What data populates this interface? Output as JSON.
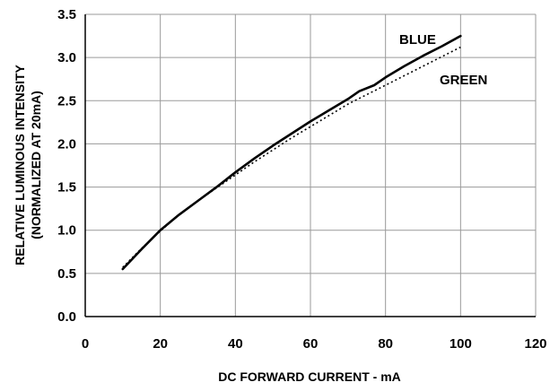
{
  "chart_data": {
    "type": "line",
    "title": "",
    "xlabel": "DC FORWARD CURRENT - mA",
    "ylabel_lines": [
      "RELATIVE LUMINOUS INTENSITY",
      "(NORMALIZED AT 20mA)"
    ],
    "xlim": [
      0,
      120
    ],
    "ylim": [
      0.0,
      3.5
    ],
    "xticks": [
      "0",
      "20",
      "40",
      "60",
      "80",
      "100",
      "120"
    ],
    "yticks": [
      "0.0",
      "0.5",
      "1.0",
      "1.5",
      "2.0",
      "2.5",
      "3.0",
      "3.5"
    ],
    "grid": true,
    "legend": "none",
    "series": [
      {
        "name": "BLUE",
        "style": "solid",
        "color": "#000000",
        "x": [
          10,
          15,
          20,
          25,
          30,
          35,
          40,
          45,
          50,
          55,
          60,
          65,
          70,
          73,
          77,
          80,
          85,
          90,
          95,
          100
        ],
        "y": [
          0.55,
          0.78,
          1.0,
          1.18,
          1.34,
          1.5,
          1.67,
          1.83,
          1.98,
          2.12,
          2.26,
          2.39,
          2.52,
          2.61,
          2.68,
          2.77,
          2.9,
          3.02,
          3.13,
          3.25
        ]
      },
      {
        "name": "GREEN",
        "style": "dotted",
        "color": "#000000",
        "x": [
          10,
          15,
          20,
          25,
          30,
          35,
          40,
          45,
          50,
          55,
          60,
          65,
          70,
          75,
          80,
          85,
          90,
          95,
          100
        ],
        "y": [
          0.57,
          0.79,
          0.99,
          1.18,
          1.34,
          1.49,
          1.64,
          1.79,
          1.93,
          2.07,
          2.2,
          2.33,
          2.46,
          2.57,
          2.68,
          2.79,
          2.9,
          3.01,
          3.12
        ]
      }
    ]
  }
}
